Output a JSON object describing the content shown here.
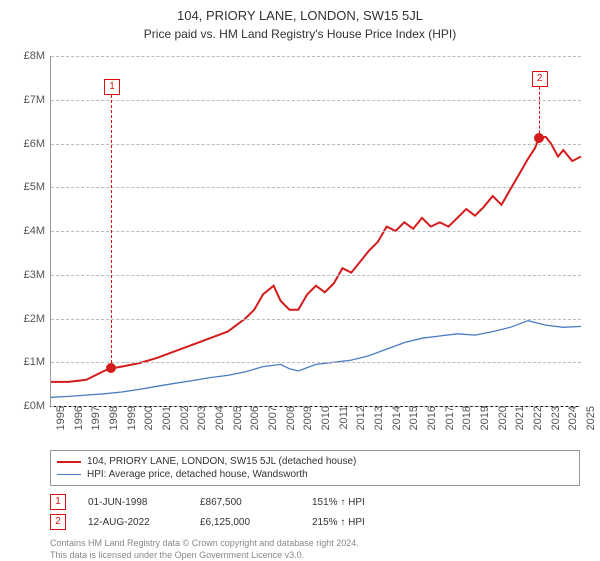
{
  "title": "104, PRIORY LANE, LONDON, SW15 5JL",
  "subtitle": "Price paid vs. HM Land Registry's House Price Index (HPI)",
  "chart": {
    "type": "line",
    "xlim": [
      1995,
      2025
    ],
    "ylim": [
      0,
      8
    ],
    "xticks": [
      1995,
      1996,
      1997,
      1998,
      1999,
      2000,
      2001,
      2002,
      2003,
      2004,
      2005,
      2006,
      2007,
      2008,
      2009,
      2010,
      2011,
      2012,
      2013,
      2014,
      2015,
      2016,
      2017,
      2018,
      2019,
      2020,
      2021,
      2022,
      2023,
      2024,
      2025
    ],
    "yticks": [
      0,
      1,
      2,
      3,
      4,
      5,
      6,
      7,
      8
    ],
    "ytick_prefix": "£",
    "ytick_suffix": "M",
    "grid_color": "#bbbbbb",
    "background_color": "#ffffff",
    "red_color": "#d41c1c",
    "blue_color": "#4a7cc4",
    "red_width": 2,
    "blue_width": 1.3,
    "marker_fill": "#d41c1c",
    "series_red": [
      [
        1995,
        0.55
      ],
      [
        1996,
        0.55
      ],
      [
        1997,
        0.6
      ],
      [
        1998,
        0.8
      ],
      [
        1998.3,
        0.85
      ],
      [
        1999,
        0.9
      ],
      [
        2000,
        0.98
      ],
      [
        2001,
        1.1
      ],
      [
        2002,
        1.25
      ],
      [
        2003,
        1.4
      ],
      [
        2004,
        1.55
      ],
      [
        2005,
        1.7
      ],
      [
        2006,
        2.0
      ],
      [
        2006.5,
        2.2
      ],
      [
        2007,
        2.55
      ],
      [
        2007.6,
        2.75
      ],
      [
        2008,
        2.4
      ],
      [
        2008.5,
        2.2
      ],
      [
        2009,
        2.2
      ],
      [
        2009.5,
        2.55
      ],
      [
        2010,
        2.75
      ],
      [
        2010.5,
        2.6
      ],
      [
        2011,
        2.8
      ],
      [
        2011.5,
        3.15
      ],
      [
        2012,
        3.05
      ],
      [
        2012.5,
        3.3
      ],
      [
        2013,
        3.55
      ],
      [
        2013.5,
        3.75
      ],
      [
        2014,
        4.1
      ],
      [
        2014.5,
        4.0
      ],
      [
        2015,
        4.2
      ],
      [
        2015.5,
        4.05
      ],
      [
        2016,
        4.3
      ],
      [
        2016.5,
        4.1
      ],
      [
        2017,
        4.2
      ],
      [
        2017.5,
        4.1
      ],
      [
        2018,
        4.3
      ],
      [
        2018.5,
        4.5
      ],
      [
        2019,
        4.35
      ],
      [
        2019.5,
        4.55
      ],
      [
        2020,
        4.8
      ],
      [
        2020.5,
        4.6
      ],
      [
        2021,
        4.95
      ],
      [
        2021.5,
        5.3
      ],
      [
        2022,
        5.65
      ],
      [
        2022.4,
        5.9
      ],
      [
        2022.6,
        6.12
      ],
      [
        2023,
        6.15
      ],
      [
        2023.3,
        6.0
      ],
      [
        2023.7,
        5.7
      ],
      [
        2024,
        5.85
      ],
      [
        2024.5,
        5.6
      ],
      [
        2025,
        5.7
      ]
    ],
    "series_blue": [
      [
        1995,
        0.2
      ],
      [
        1996,
        0.22
      ],
      [
        1997,
        0.25
      ],
      [
        1998,
        0.28
      ],
      [
        1999,
        0.32
      ],
      [
        2000,
        0.38
      ],
      [
        2001,
        0.45
      ],
      [
        2002,
        0.52
      ],
      [
        2003,
        0.58
      ],
      [
        2004,
        0.65
      ],
      [
        2005,
        0.7
      ],
      [
        2006,
        0.78
      ],
      [
        2007,
        0.9
      ],
      [
        2008,
        0.95
      ],
      [
        2008.5,
        0.85
      ],
      [
        2009,
        0.8
      ],
      [
        2010,
        0.95
      ],
      [
        2011,
        1.0
      ],
      [
        2012,
        1.05
      ],
      [
        2013,
        1.15
      ],
      [
        2014,
        1.3
      ],
      [
        2015,
        1.45
      ],
      [
        2016,
        1.55
      ],
      [
        2017,
        1.6
      ],
      [
        2018,
        1.65
      ],
      [
        2019,
        1.62
      ],
      [
        2020,
        1.7
      ],
      [
        2021,
        1.8
      ],
      [
        2022,
        1.95
      ],
      [
        2023,
        1.85
      ],
      [
        2024,
        1.8
      ],
      [
        2025,
        1.82
      ]
    ],
    "markers": [
      {
        "id": "1",
        "x": 1998.4,
        "y": 0.87,
        "label_y": 7.1
      },
      {
        "id": "2",
        "x": 2022.6,
        "y": 6.12,
        "label_y": 7.3
      }
    ]
  },
  "legend": {
    "red": "104, PRIORY LANE, LONDON, SW15 5JL (detached house)",
    "blue": "HPI: Average price, detached house, Wandsworth"
  },
  "transactions": [
    {
      "id": "1",
      "date": "01-JUN-1998",
      "price": "£867,500",
      "delta": "151% ↑ HPI"
    },
    {
      "id": "2",
      "date": "12-AUG-2022",
      "price": "£6,125,000",
      "delta": "215% ↑ HPI"
    }
  ],
  "credit1": "Contains HM Land Registry data © Crown copyright and database right 2024.",
  "credit2": "This data is licensed under the Open Government Licence v3.0."
}
